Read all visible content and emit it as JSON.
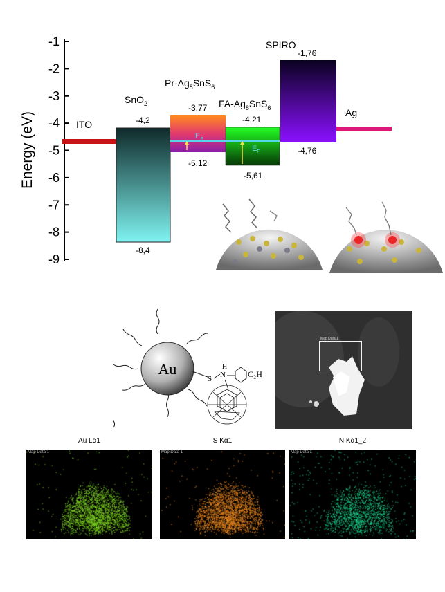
{
  "energy_diagram": {
    "ylabel": "Energy (eV)",
    "ylim": [
      -9,
      -1
    ],
    "yticks": [
      "-1",
      "-2",
      "-3",
      "-4",
      "-5",
      "-6",
      "-7",
      "-8",
      "-9"
    ],
    "layers": [
      {
        "name_main": "ITO",
        "name_sub": "",
        "name_tail": "",
        "level": -4.7,
        "color": "#d61a1a"
      },
      {
        "name_main": "SnO",
        "name_sub": "2",
        "name_tail": "",
        "cb": -4.2,
        "vb": -8.4,
        "cb_label": "-4,2",
        "vb_label": "-8,4",
        "color_top": "#0f2a2a",
        "color_bottom": "#7ff3f0"
      },
      {
        "name_main": "Pr-Ag",
        "name_sub": "8",
        "name_tail": "SnS",
        "name_sub2": "6",
        "cb": -3.77,
        "vb": -5.12,
        "cb_label": "-3,77",
        "vb_label": "-5,12",
        "fermi_label": "E",
        "fermi_sub": "F",
        "color_top": "#ff8a1e",
        "color_bottom": "#8a1ea8"
      },
      {
        "name_main": "FA-Ag",
        "name_sub": "8",
        "name_tail": "SnS",
        "name_sub2": "6",
        "cb": -4.21,
        "vb": -5.61,
        "cb_label": "-4,21",
        "vb_label": "-5,61",
        "fermi_label": "E",
        "fermi_sub": "F",
        "color_top": "#22ff22",
        "color_bottom": "#063806"
      },
      {
        "name_main": "SPIRO",
        "name_sub": "",
        "name_tail": "",
        "cb": -1.76,
        "vb": -4.76,
        "cb_label": "-1,76",
        "vb_label": "-4,76",
        "color_top": "#0a0220",
        "color_bottom": "#8a10ff"
      },
      {
        "name_main": "Ag",
        "name_sub": "",
        "name_tail": "",
        "level": -4.3,
        "color": "#e0157a"
      }
    ]
  },
  "molecule": {
    "core_label": "Au",
    "sulfur": "S",
    "amine_h": "H",
    "amine_n": "N",
    "substituent": "C₂H"
  },
  "sem": {
    "tag": "Map Data 1"
  },
  "panel_marker": ")",
  "eds_maps": [
    {
      "title": "Au Lα1",
      "tag": "Map Data 1",
      "color": "#7dd321"
    },
    {
      "title": "S Kα1",
      "tag": "Map Data 1",
      "color": "#f08a1f"
    },
    {
      "title": "N Kα1_2",
      "tag": "Map Data 1",
      "color": "#1fd38e"
    }
  ]
}
